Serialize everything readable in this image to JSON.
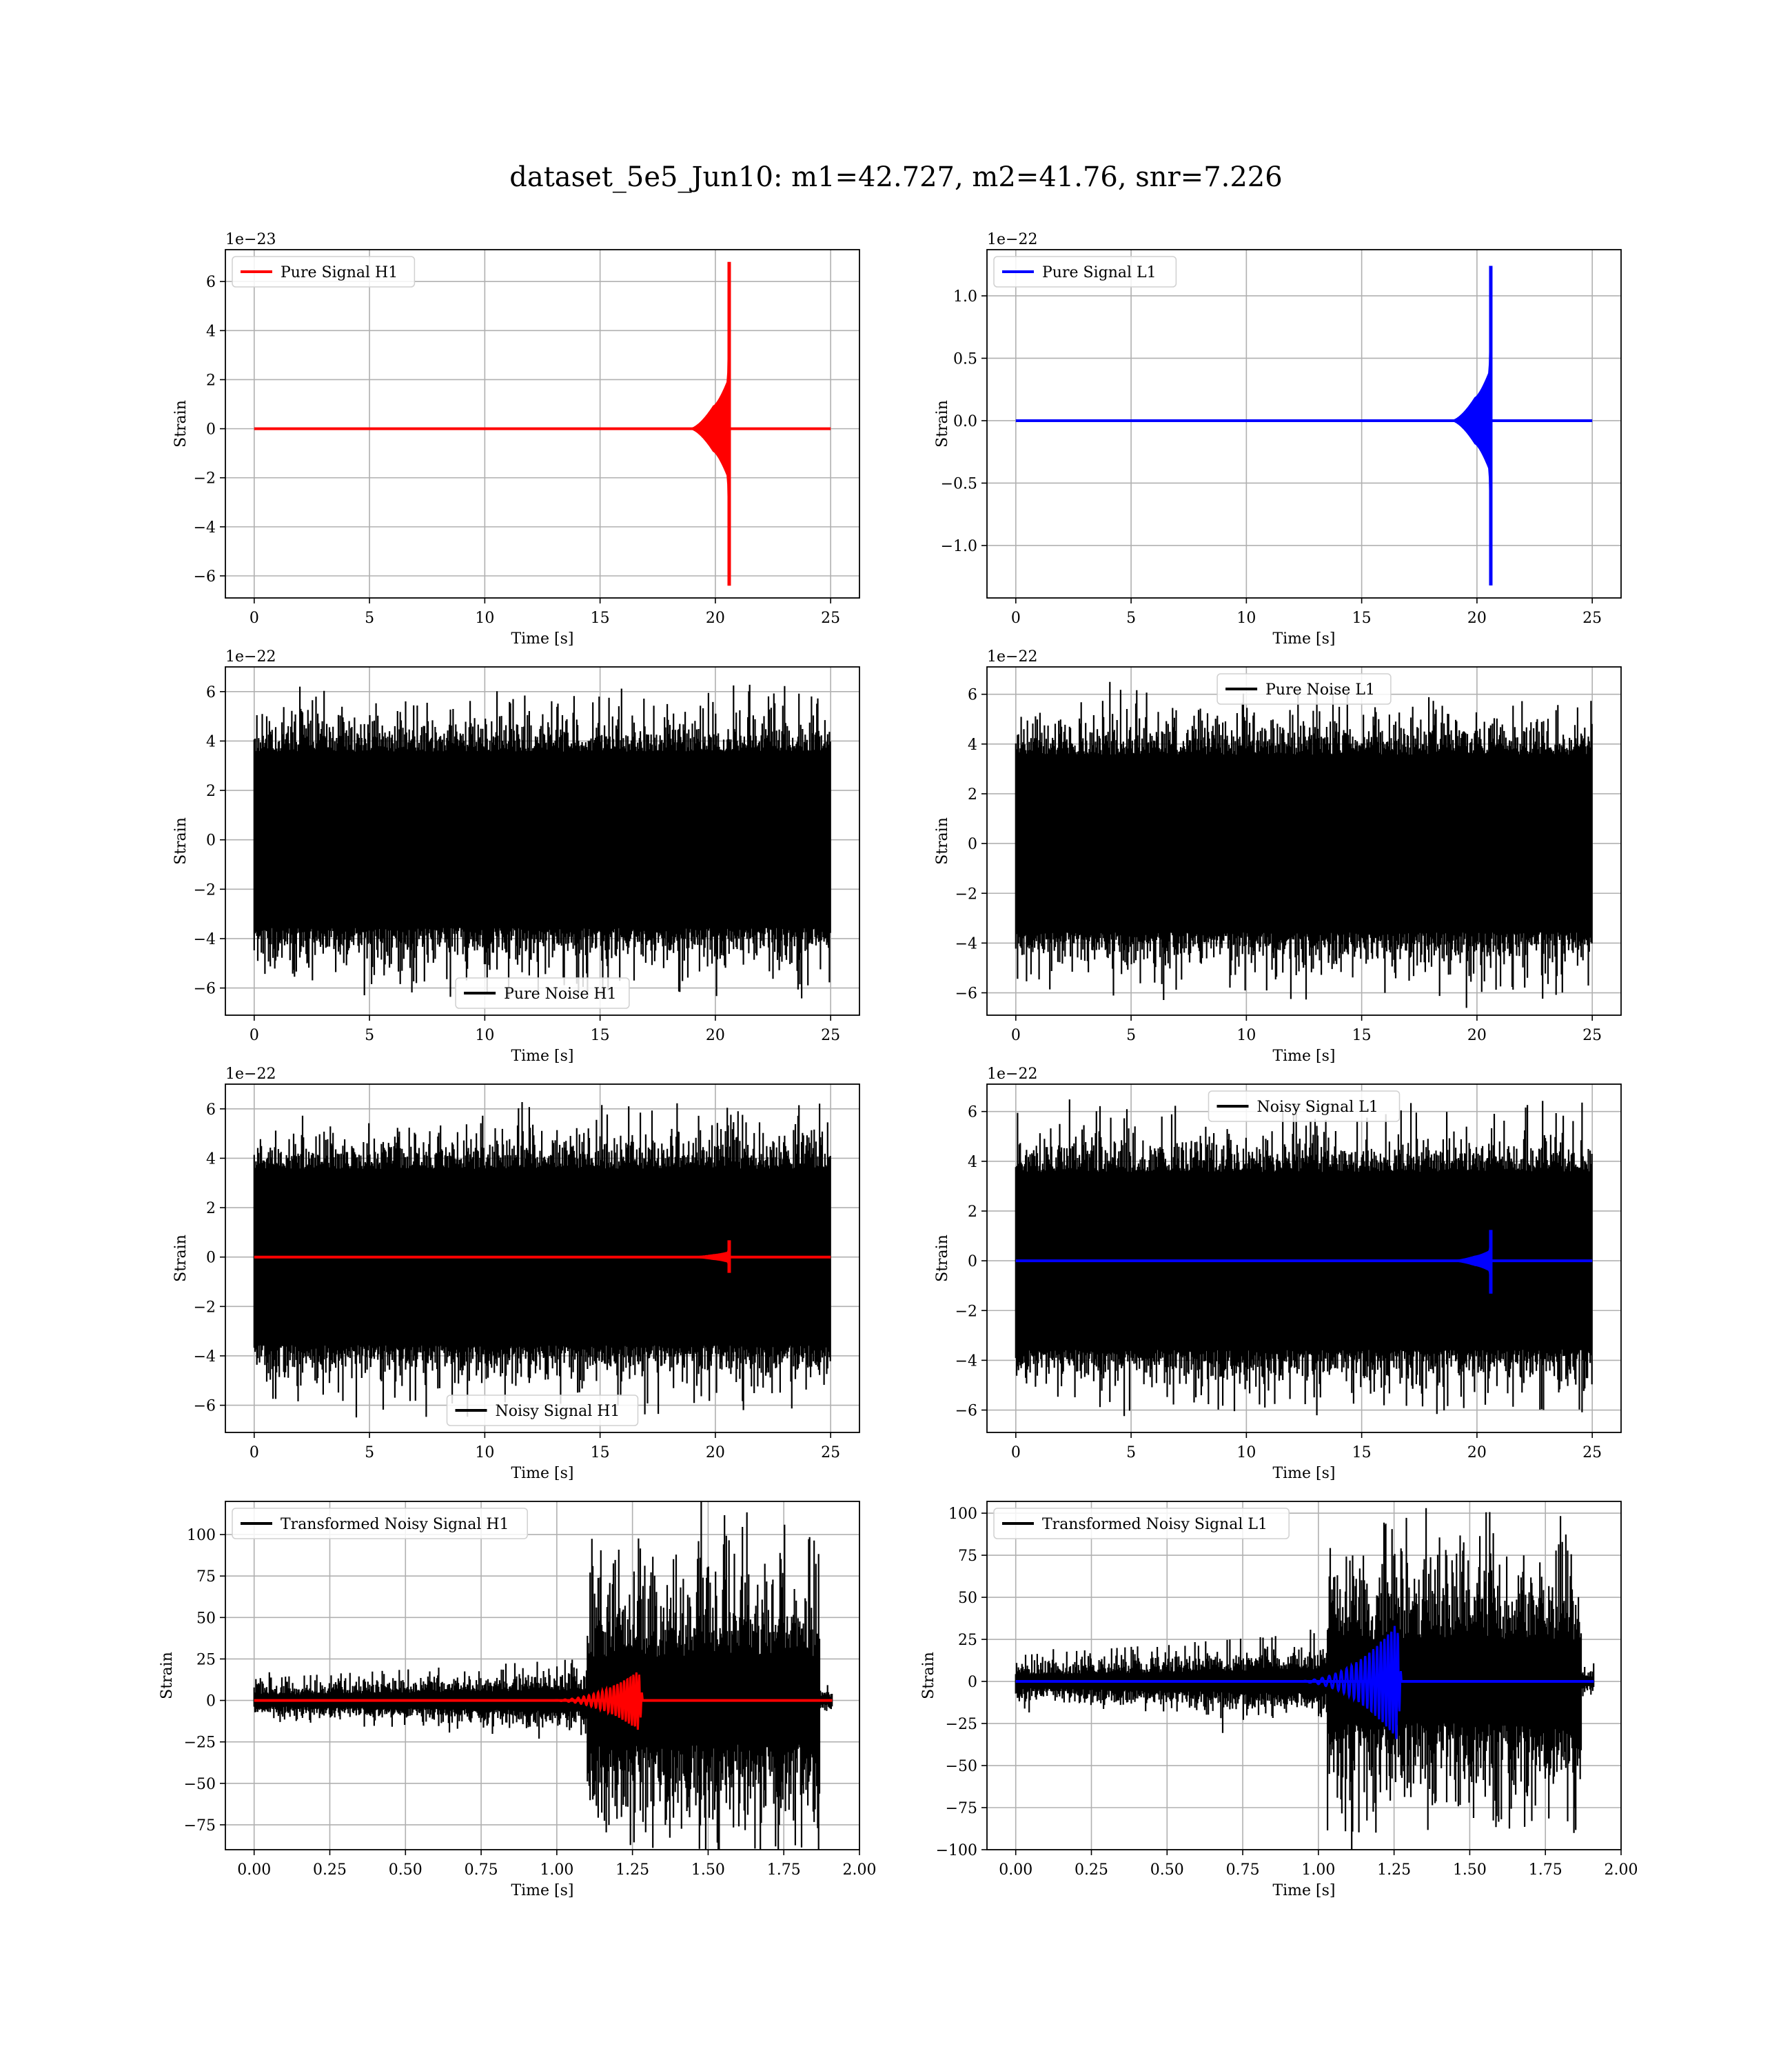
{
  "figure": {
    "suptitle": "dataset_5e5_Jun10: m1=42.727, m2=41.76, snr=7.226"
  },
  "colors": {
    "h1_signal": "#ff0000",
    "l1_signal": "#0000ff",
    "noise": "#000000",
    "grid": "#b0b0b0",
    "axes": "#000000"
  },
  "chart_data": [
    {
      "id": "pure-signal-h1",
      "type": "line",
      "xlabel": "Time [s]",
      "ylabel": "Strain",
      "offset_text": "1e−23",
      "xlim": [
        -1.25,
        26.25
      ],
      "ylim": [
        -6.9,
        7.3
      ],
      "xticks": [
        0,
        5,
        10,
        15,
        20,
        25
      ],
      "xtick_labels": [
        "0",
        "5",
        "10",
        "15",
        "20",
        "25"
      ],
      "yticks": [
        -6,
        -4,
        -2,
        0,
        2,
        4,
        6
      ],
      "ytick_labels": [
        "−6",
        "−4",
        "−2",
        "0",
        "2",
        "4",
        "6"
      ],
      "grid": true,
      "legend_position": "upper-left",
      "series": [
        {
          "name": "Pure Signal H1",
          "kind": "chirp",
          "color": "#ff0000",
          "x_range": [
            0,
            25
          ],
          "onset": 18.9,
          "merger": 20.6,
          "pre_amp": 2.1,
          "peak_pos": 6.8,
          "peak_neg": -6.4
        }
      ]
    },
    {
      "id": "pure-signal-l1",
      "type": "line",
      "xlabel": "Time [s]",
      "ylabel": "Strain",
      "offset_text": "1e−22",
      "xlim": [
        -1.25,
        26.25
      ],
      "ylim": [
        -1.42,
        1.37
      ],
      "xticks": [
        0,
        5,
        10,
        15,
        20,
        25
      ],
      "xtick_labels": [
        "0",
        "5",
        "10",
        "15",
        "20",
        "25"
      ],
      "yticks": [
        -1.0,
        -0.5,
        0.0,
        0.5,
        1.0
      ],
      "ytick_labels": [
        "−1.0",
        "−0.5",
        "0.0",
        "0.5",
        "1.0"
      ],
      "grid": true,
      "legend_position": "upper-left",
      "series": [
        {
          "name": "Pure Signal L1",
          "kind": "chirp",
          "color": "#0000ff",
          "x_range": [
            0,
            25
          ],
          "onset": 18.9,
          "merger": 20.6,
          "pre_amp": 0.42,
          "peak_pos": 1.24,
          "peak_neg": -1.32
        }
      ]
    },
    {
      "id": "pure-noise-h1",
      "type": "line",
      "xlabel": "Time [s]",
      "ylabel": "Strain",
      "offset_text": "1e−22",
      "xlim": [
        -1.25,
        26.25
      ],
      "ylim": [
        -7.1,
        7.0
      ],
      "xticks": [
        0,
        5,
        10,
        15,
        20,
        25
      ],
      "xtick_labels": [
        "0",
        "5",
        "10",
        "15",
        "20",
        "25"
      ],
      "yticks": [
        -6,
        -4,
        -2,
        0,
        2,
        4,
        6
      ],
      "ytick_labels": [
        "−6",
        "−4",
        "−2",
        "0",
        "2",
        "4",
        "6"
      ],
      "grid": true,
      "legend_position": "lower-center",
      "series": [
        {
          "name": "Pure Noise H1",
          "kind": "noise",
          "color": "#000000",
          "x_range": [
            0,
            25
          ],
          "core_amp": 3.4,
          "max": 6.3,
          "min": -6.5
        }
      ]
    },
    {
      "id": "pure-noise-l1",
      "type": "line",
      "xlabel": "Time [s]",
      "ylabel": "Strain",
      "offset_text": "1e−22",
      "xlim": [
        -1.25,
        26.25
      ],
      "ylim": [
        -6.9,
        7.1
      ],
      "xticks": [
        0,
        5,
        10,
        15,
        20,
        25
      ],
      "xtick_labels": [
        "0",
        "5",
        "10",
        "15",
        "20",
        "25"
      ],
      "yticks": [
        -6,
        -4,
        -2,
        0,
        2,
        4,
        6
      ],
      "ytick_labels": [
        "−6",
        "−4",
        "−2",
        "0",
        "2",
        "4",
        "6"
      ],
      "grid": true,
      "legend_position": "upper-center",
      "series": [
        {
          "name": "Pure Noise L1",
          "kind": "noise",
          "color": "#000000",
          "x_range": [
            0,
            25
          ],
          "core_amp": 3.4,
          "max": 6.5,
          "min": -6.3
        }
      ]
    },
    {
      "id": "noisy-signal-h1",
      "type": "line",
      "xlabel": "Time [s]",
      "ylabel": "Strain",
      "offset_text": "1e−22",
      "xlim": [
        -1.25,
        26.25
      ],
      "ylim": [
        -7.1,
        7.0
      ],
      "xticks": [
        0,
        5,
        10,
        15,
        20,
        25
      ],
      "xtick_labels": [
        "0",
        "5",
        "10",
        "15",
        "20",
        "25"
      ],
      "yticks": [
        -6,
        -4,
        -2,
        0,
        2,
        4,
        6
      ],
      "ytick_labels": [
        "−6",
        "−4",
        "−2",
        "0",
        "2",
        "4",
        "6"
      ],
      "grid": true,
      "legend_position": "lower-center",
      "series": [
        {
          "name": "Noisy Signal H1",
          "kind": "noise",
          "color": "#000000",
          "x_range": [
            0,
            25
          ],
          "core_amp": 3.4,
          "max": 6.3,
          "min": -6.5
        },
        {
          "name": "",
          "kind": "chirp",
          "color": "#ff0000",
          "x_range": [
            0,
            25
          ],
          "onset": 18.9,
          "merger": 20.6,
          "pre_amp": 0.21,
          "peak_pos": 0.68,
          "peak_neg": -0.64
        }
      ]
    },
    {
      "id": "noisy-signal-l1",
      "type": "line",
      "xlabel": "Time [s]",
      "ylabel": "Strain",
      "offset_text": "1e−22",
      "xlim": [
        -1.25,
        26.25
      ],
      "ylim": [
        -6.9,
        7.1
      ],
      "xticks": [
        0,
        5,
        10,
        15,
        20,
        25
      ],
      "xtick_labels": [
        "0",
        "5",
        "10",
        "15",
        "20",
        "25"
      ],
      "yticks": [
        -6,
        -4,
        -2,
        0,
        2,
        4,
        6
      ],
      "ytick_labels": [
        "−6",
        "−4",
        "−2",
        "0",
        "2",
        "4",
        "6"
      ],
      "grid": true,
      "legend_position": "upper-center",
      "series": [
        {
          "name": "Noisy Signal L1",
          "kind": "noise",
          "color": "#000000",
          "x_range": [
            0,
            25
          ],
          "core_amp": 3.4,
          "max": 6.5,
          "min": -6.3
        },
        {
          "name": "",
          "kind": "chirp",
          "color": "#0000ff",
          "x_range": [
            0,
            25
          ],
          "onset": 18.9,
          "merger": 20.6,
          "pre_amp": 0.42,
          "peak_pos": 1.24,
          "peak_neg": -1.32
        }
      ]
    },
    {
      "id": "transformed-noisy-signal-h1",
      "type": "line",
      "xlabel": "Time [s]",
      "ylabel": "Strain",
      "offset_text": "",
      "xlim": [
        -0.095,
        2.0
      ],
      "ylim": [
        -90,
        120
      ],
      "xticks": [
        0.0,
        0.25,
        0.5,
        0.75,
        1.0,
        1.25,
        1.5,
        1.75,
        2.0
      ],
      "xtick_labels": [
        "0.00",
        "0.25",
        "0.50",
        "0.75",
        "1.00",
        "1.25",
        "1.50",
        "1.75",
        "2.00"
      ],
      "yticks": [
        -75,
        -50,
        -25,
        0,
        25,
        50,
        75,
        100
      ],
      "ytick_labels": [
        "−75",
        "−50",
        "−25",
        "0",
        "25",
        "50",
        "75",
        "100"
      ],
      "grid": true,
      "legend_position": "upper-left",
      "series": [
        {
          "name": "Transformed Noisy Signal H1",
          "kind": "whitened_noise",
          "color": "#000000",
          "x_range": [
            0,
            1.91
          ],
          "jump": 1.1,
          "end": 1.87,
          "early_amp": 6,
          "late_amp": 48,
          "max": 112,
          "min": -90
        },
        {
          "name": "",
          "kind": "chirp",
          "color": "#ff0000",
          "x_range": [
            0,
            1.91
          ],
          "onset": 0.95,
          "merger": 1.27,
          "pre_amp": 8,
          "peak_pos": 18,
          "peak_neg": -18
        }
      ]
    },
    {
      "id": "transformed-noisy-signal-l1",
      "type": "line",
      "xlabel": "Time [s]",
      "ylabel": "Strain",
      "offset_text": "",
      "xlim": [
        -0.095,
        2.0
      ],
      "ylim": [
        -100,
        107
      ],
      "xticks": [
        0.0,
        0.25,
        0.5,
        0.75,
        1.0,
        1.25,
        1.5,
        1.75,
        2.0
      ],
      "xtick_labels": [
        "0.00",
        "0.25",
        "0.50",
        "0.75",
        "1.00",
        "1.25",
        "1.50",
        "1.75",
        "2.00"
      ],
      "yticks": [
        -100,
        -75,
        -50,
        -25,
        0,
        25,
        50,
        75,
        100
      ],
      "ytick_labels": [
        "−100",
        "−75",
        "−50",
        "−25",
        "0",
        "25",
        "50",
        "75",
        "100"
      ],
      "grid": true,
      "legend_position": "upper-left",
      "series": [
        {
          "name": "Transformed Noisy Signal L1",
          "kind": "whitened_noise",
          "color": "#000000",
          "x_range": [
            0,
            1.91
          ],
          "jump": 1.03,
          "end": 1.87,
          "early_amp": 7,
          "late_amp": 45,
          "max": 101,
          "min": -92
        },
        {
          "name": "",
          "kind": "chirp",
          "color": "#0000ff",
          "x_range": [
            0,
            1.91
          ],
          "onset": 0.9,
          "merger": 1.26,
          "pre_amp": 12,
          "peak_pos": 35,
          "peak_neg": -34
        }
      ]
    }
  ]
}
